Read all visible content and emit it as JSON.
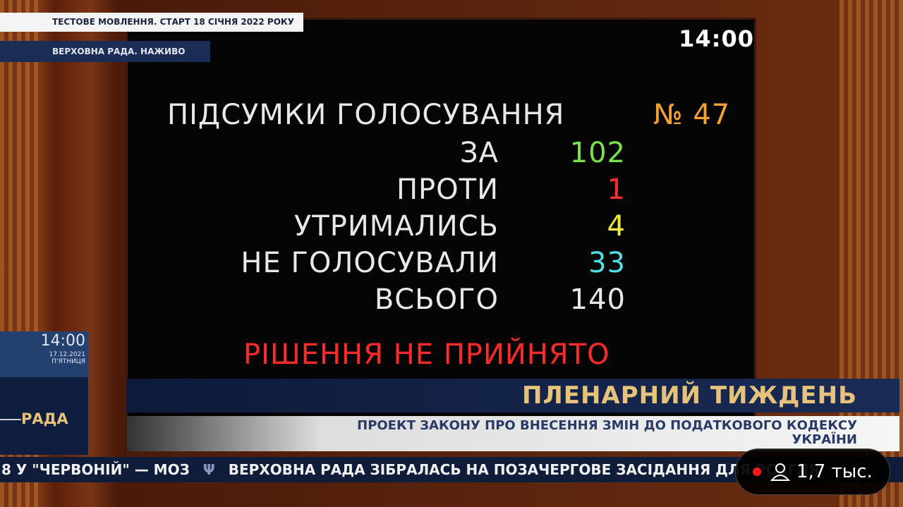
{
  "overlay": {
    "test_banner": "ТЕСТОВЕ МОВЛЕННЯ. СТАРТ 18 СІЧНЯ 2022 РОКУ",
    "live_banner": "ВЕРХОВНА РАДА. НАЖИВО"
  },
  "board": {
    "clock": "14:00",
    "title": "ПІДСУМКИ ГОЛОСУВАННЯ",
    "number": "№ 47",
    "rows": [
      {
        "label": "ЗА",
        "value": "102",
        "color": "#7be04a"
      },
      {
        "label": "ПРОТИ",
        "value": "1",
        "color": "#ff3030"
      },
      {
        "label": "УТРИМАЛИСЬ",
        "value": "4",
        "color": "#f2e640"
      },
      {
        "label": "НЕ ГОЛОСУВАЛИ",
        "value": "33",
        "color": "#4fe0e8"
      },
      {
        "label": "ВСЬОГО",
        "value": "140",
        "color": "#e8e8e8"
      }
    ],
    "result": "РІШЕННЯ НЕ ПРИЙНЯТО",
    "result_color": "#ff2a2a",
    "number_color": "#f5a030"
  },
  "side": {
    "time": "14:00",
    "date": "17.12.2021",
    "weekday": "П'ЯТНИЦЯ",
    "logo": "РАДА"
  },
  "lower_third": {
    "heading": "ПЛЕНАРНИЙ ТИЖДЕНЬ",
    "line1": "ПРОЕКТ ЗАКОНУ ПРО ВНЕСЕННЯ ЗМІН ДО ПОДАТКОВОГО КОДЕКСУ",
    "line2": "УКРАЇНИ"
  },
  "ticker": {
    "text_before": "8 У \"ЧЕРВОНІЙ\" — МОЗ",
    "text_after": "ВЕРХОВНА РАДА ЗІБРАЛАСЬ НА ПОЗАЧЕРГОВЕ ЗАСІДАННЯ ДЛЯ РОЗГЛЯ"
  },
  "live_badge": {
    "viewers": "1,7 тыс.",
    "dot_color": "#ff1a1a"
  }
}
